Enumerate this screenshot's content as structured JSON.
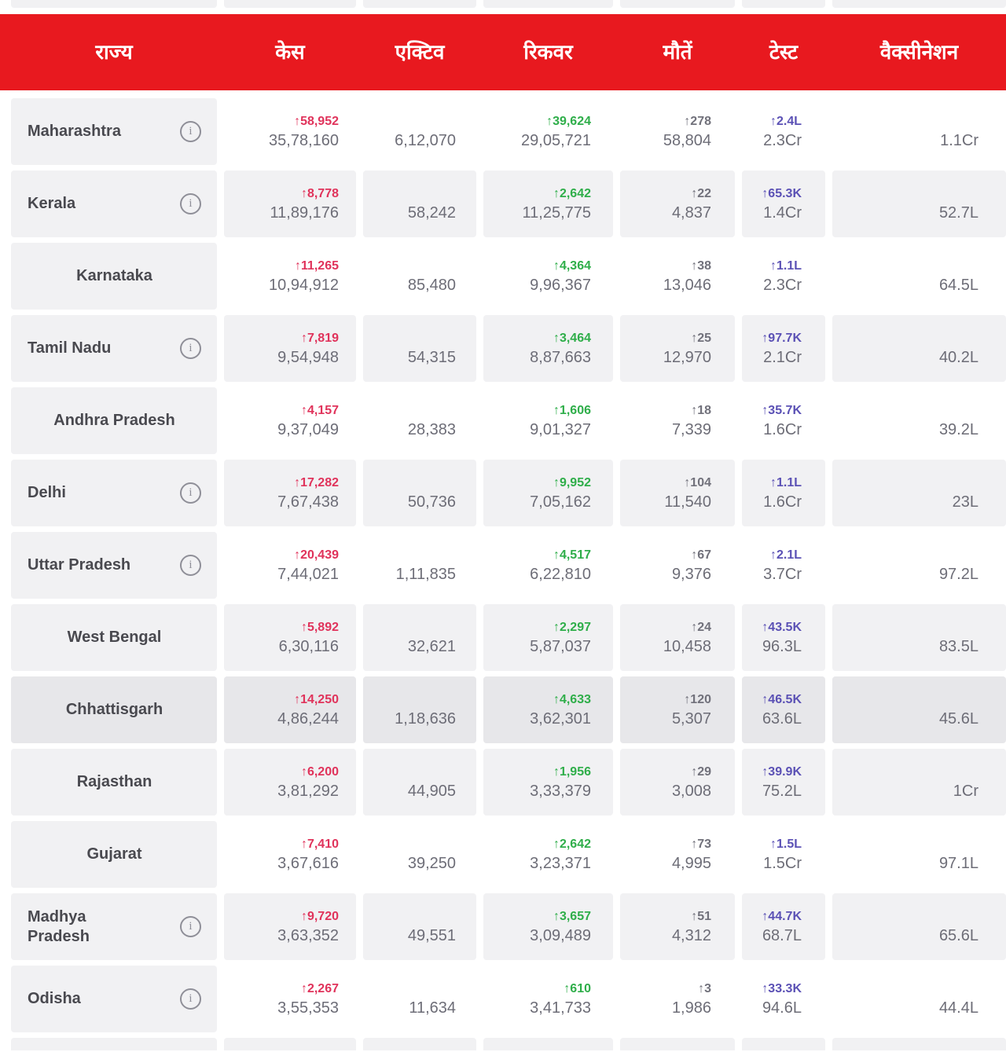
{
  "colors": {
    "header-red": "#e8191f",
    "cell-gray": "#f1f1f3",
    "cell-dark": "#e7e7ea",
    "delta-red": "#e0335b",
    "delta-green": "#2fae4a",
    "delta-gray": "#71717b",
    "delta-purple": "#5b51b5",
    "num-text": "#6d6d77",
    "state-text": "#49494f"
  },
  "table": {
    "columns": [
      {
        "key": "state",
        "label": "राज्य"
      },
      {
        "key": "cases",
        "label": "केस"
      },
      {
        "key": "active",
        "label": "एक्टिव"
      },
      {
        "key": "recovered",
        "label": "रिकवर"
      },
      {
        "key": "deaths",
        "label": "मौतें"
      },
      {
        "key": "tests",
        "label": "टेस्ट"
      },
      {
        "key": "vaccination",
        "label": "वैक्सीनेशन"
      }
    ]
  },
  "rows": [
    {
      "state": "Maharashtra",
      "info": true,
      "shade": "plain",
      "cases_delta": "↑58,952",
      "cases_total": "35,78,160",
      "active": "6,12,070",
      "recovered_delta": "↑39,624",
      "recovered_total": "29,05,721",
      "deaths_delta": "↑278",
      "deaths_total": "58,804",
      "tests_delta": "↑2.4L",
      "tests_total": "2.3Cr",
      "vaccination": "1.1Cr"
    },
    {
      "state": "Kerala",
      "info": true,
      "shade": "gray",
      "cases_delta": "↑8,778",
      "cases_total": "11,89,176",
      "active": "58,242",
      "recovered_delta": "↑2,642",
      "recovered_total": "11,25,775",
      "deaths_delta": "↑22",
      "deaths_total": "4,837",
      "tests_delta": "↑65.3K",
      "tests_total": "1.4Cr",
      "vaccination": "52.7L"
    },
    {
      "state": "Karnataka",
      "info": false,
      "shade": "plain",
      "cases_delta": "↑11,265",
      "cases_total": "10,94,912",
      "active": "85,480",
      "recovered_delta": "↑4,364",
      "recovered_total": "9,96,367",
      "deaths_delta": "↑38",
      "deaths_total": "13,046",
      "tests_delta": "↑1.1L",
      "tests_total": "2.3Cr",
      "vaccination": "64.5L"
    },
    {
      "state": "Tamil Nadu",
      "info": true,
      "shade": "gray",
      "cases_delta": "↑7,819",
      "cases_total": "9,54,948",
      "active": "54,315",
      "recovered_delta": "↑3,464",
      "recovered_total": "8,87,663",
      "deaths_delta": "↑25",
      "deaths_total": "12,970",
      "tests_delta": "↑97.7K",
      "tests_total": "2.1Cr",
      "vaccination": "40.2L"
    },
    {
      "state": "Andhra Pradesh",
      "info": false,
      "shade": "plain",
      "cases_delta": "↑4,157",
      "cases_total": "9,37,049",
      "active": "28,383",
      "recovered_delta": "↑1,606",
      "recovered_total": "9,01,327",
      "deaths_delta": "↑18",
      "deaths_total": "7,339",
      "tests_delta": "↑35.7K",
      "tests_total": "1.6Cr",
      "vaccination": "39.2L"
    },
    {
      "state": "Delhi",
      "info": true,
      "shade": "gray",
      "cases_delta": "↑17,282",
      "cases_total": "7,67,438",
      "active": "50,736",
      "recovered_delta": "↑9,952",
      "recovered_total": "7,05,162",
      "deaths_delta": "↑104",
      "deaths_total": "11,540",
      "tests_delta": "↑1.1L",
      "tests_total": "1.6Cr",
      "vaccination": "23L"
    },
    {
      "state": "Uttar Pradesh",
      "info": true,
      "shade": "plain",
      "cases_delta": "↑20,439",
      "cases_total": "7,44,021",
      "active": "1,11,835",
      "recovered_delta": "↑4,517",
      "recovered_total": "6,22,810",
      "deaths_delta": "↑67",
      "deaths_total": "9,376",
      "tests_delta": "↑2.1L",
      "tests_total": "3.7Cr",
      "vaccination": "97.2L"
    },
    {
      "state": "West Bengal",
      "info": false,
      "shade": "gray",
      "cases_delta": "↑5,892",
      "cases_total": "6,30,116",
      "active": "32,621",
      "recovered_delta": "↑2,297",
      "recovered_total": "5,87,037",
      "deaths_delta": "↑24",
      "deaths_total": "10,458",
      "tests_delta": "↑43.5K",
      "tests_total": "96.3L",
      "vaccination": "83.5L"
    },
    {
      "state": "Chhattisgarh",
      "info": false,
      "shade": "dark",
      "cases_delta": "↑14,250",
      "cases_total": "4,86,244",
      "active": "1,18,636",
      "recovered_delta": "↑4,633",
      "recovered_total": "3,62,301",
      "deaths_delta": "↑120",
      "deaths_total": "5,307",
      "tests_delta": "↑46.5K",
      "tests_total": "63.6L",
      "vaccination": "45.6L"
    },
    {
      "state": "Rajasthan",
      "info": false,
      "shade": "gray",
      "cases_delta": "↑6,200",
      "cases_total": "3,81,292",
      "active": "44,905",
      "recovered_delta": "↑1,956",
      "recovered_total": "3,33,379",
      "deaths_delta": "↑29",
      "deaths_total": "3,008",
      "tests_delta": "↑39.9K",
      "tests_total": "75.2L",
      "vaccination": "1Cr"
    },
    {
      "state": "Gujarat",
      "info": false,
      "shade": "plain",
      "cases_delta": "↑7,410",
      "cases_total": "3,67,616",
      "active": "39,250",
      "recovered_delta": "↑2,642",
      "recovered_total": "3,23,371",
      "deaths_delta": "↑73",
      "deaths_total": "4,995",
      "tests_delta": "↑1.5L",
      "tests_total": "1.5Cr",
      "vaccination": "97.1L"
    },
    {
      "state": "Madhya\nPradesh",
      "info": true,
      "shade": "gray",
      "cases_delta": "↑9,720",
      "cases_total": "3,63,352",
      "active": "49,551",
      "recovered_delta": "↑3,657",
      "recovered_total": "3,09,489",
      "deaths_delta": "↑51",
      "deaths_total": "4,312",
      "tests_delta": "↑44.7K",
      "tests_total": "68.7L",
      "vaccination": "65.6L"
    },
    {
      "state": "Odisha",
      "info": true,
      "shade": "plain",
      "cases_delta": "↑2,267",
      "cases_total": "3,55,353",
      "active": "11,634",
      "recovered_delta": "↑610",
      "recovered_total": "3,41,733",
      "deaths_delta": "↑3",
      "deaths_total": "1,986",
      "tests_delta": "↑33.3K",
      "tests_total": "94.6L",
      "vaccination": "44.4L"
    }
  ]
}
